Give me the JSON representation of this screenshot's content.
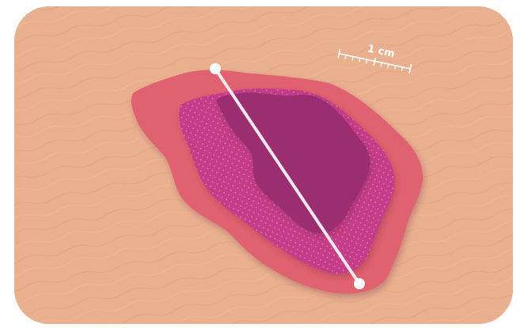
{
  "illustration": {
    "subject": "skin-lesion-measurement",
    "scale_bar": {
      "label": "1 cm"
    },
    "colors": {
      "skin": "#e9b08f",
      "lesion_outer": "#e0626f",
      "lesion_middle": "#c53e89",
      "lesion_inner": "#9a2e71",
      "measurement_line": "#f4e8ee",
      "scale_bar": "#ffffff"
    }
  }
}
